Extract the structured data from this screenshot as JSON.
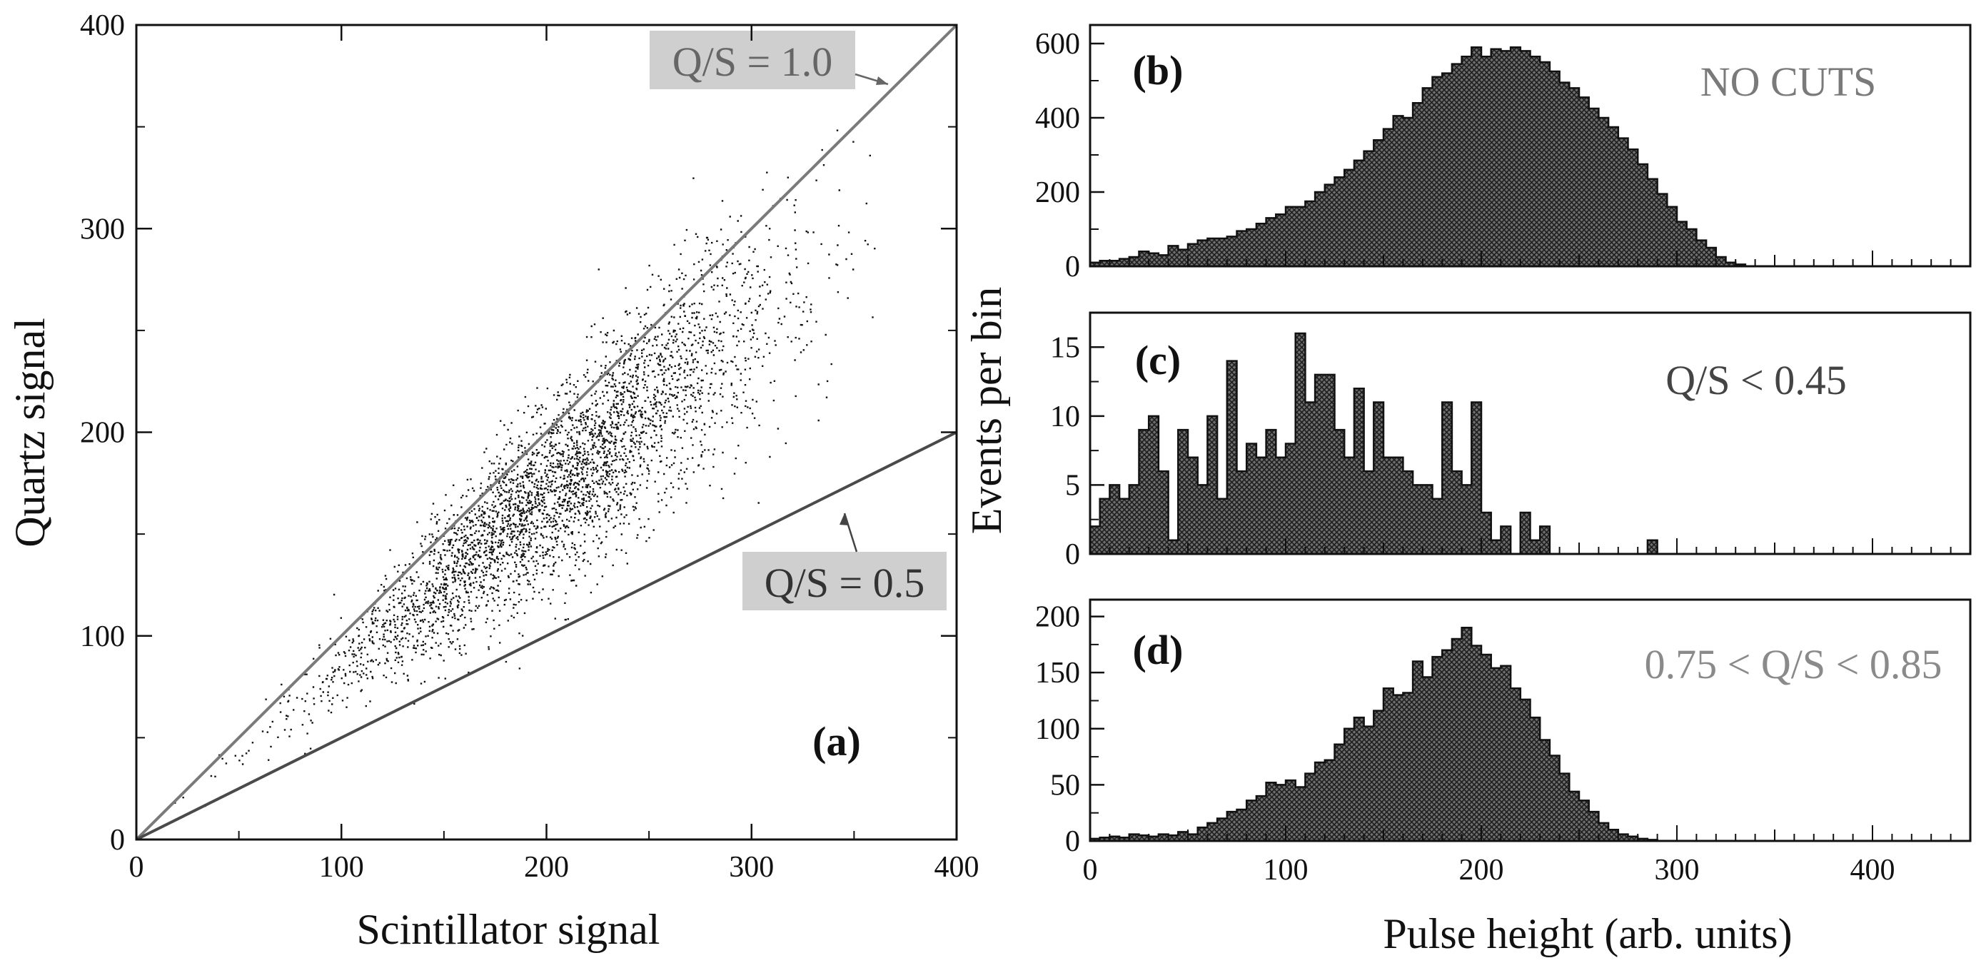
{
  "chart_data": [
    {
      "id": "a",
      "type": "scatter",
      "panel_label": "(a)",
      "xlabel": "Scintillator signal",
      "ylabel": "Quartz signal",
      "xlim": [
        0,
        400
      ],
      "ylim": [
        0,
        400
      ],
      "xticks": [
        0,
        100,
        200,
        300,
        400
      ],
      "yticks": [
        0,
        100,
        200,
        300,
        400
      ],
      "x_tick_labels": [
        "0",
        "100",
        "200",
        "300",
        "400"
      ],
      "y_tick_labels": [
        "0",
        "100",
        "200",
        "300",
        "400"
      ],
      "points": {
        "n": 9000,
        "ratio_mean": 0.85,
        "ratio_sd": 0.11,
        "scint_mean": 205,
        "scint_sd": 55
      },
      "lines": [
        {
          "label": "Q/S = 1.0",
          "slope": 1.0,
          "color": "#7a7a7a",
          "annotation_at": [
            370,
            373
          ]
        },
        {
          "label": "Q/S = 0.5",
          "slope": 0.5,
          "color": "#4a4a4a",
          "annotation_at": [
            346,
            163
          ]
        }
      ],
      "label_background": "#cfcfcf"
    },
    {
      "id": "b",
      "type": "bar",
      "panel_label": "(b)",
      "annotation": "NO CUTS",
      "annotation_color": "#7a7a7a",
      "xlim": [
        0,
        450
      ],
      "ylim": [
        0,
        650
      ],
      "xticks": [
        0,
        100,
        200,
        300,
        400
      ],
      "yticks": [
        0,
        200,
        400,
        600
      ],
      "y_tick_labels": [
        "0",
        "200",
        "400",
        "600"
      ],
      "bin_width": 5,
      "values": [
        10,
        15,
        15,
        20,
        25,
        40,
        35,
        30,
        55,
        45,
        60,
        70,
        75,
        75,
        80,
        95,
        100,
        115,
        130,
        140,
        160,
        160,
        175,
        200,
        220,
        240,
        260,
        285,
        310,
        340,
        370,
        405,
        400,
        440,
        480,
        510,
        520,
        545,
        565,
        590,
        565,
        585,
        580,
        590,
        580,
        565,
        550,
        525,
        495,
        480,
        455,
        425,
        400,
        375,
        345,
        315,
        275,
        235,
        195,
        160,
        120,
        100,
        70,
        50,
        25,
        10,
        5,
        0,
        0,
        0,
        0,
        0,
        0,
        0,
        0,
        0,
        0,
        0,
        0,
        0,
        0,
        0,
        0,
        0,
        0,
        0,
        0,
        0,
        0,
        0
      ]
    },
    {
      "id": "c",
      "type": "bar",
      "panel_label": "(c)",
      "annotation": "Q/S < 0.45",
      "annotation_color": "#444444",
      "xlim": [
        0,
        450
      ],
      "ylim": [
        0,
        17.5
      ],
      "xticks": [
        0,
        100,
        200,
        300,
        400
      ],
      "yticks": [
        0,
        5,
        10,
        15
      ],
      "y_tick_labels": [
        "0",
        "5",
        "10",
        "15"
      ],
      "bin_width": 5,
      "values": [
        2,
        4,
        5,
        4,
        5,
        9,
        10,
        6,
        1,
        9,
        7,
        5,
        10,
        4,
        14,
        6,
        8,
        7,
        9,
        7,
        8,
        16,
        11,
        13,
        13,
        9,
        7,
        12,
        6,
        11,
        7,
        7,
        6,
        5,
        5,
        4,
        11,
        6,
        5,
        11,
        3,
        1,
        2,
        0,
        3,
        1,
        2,
        0,
        0,
        0,
        0,
        0,
        0,
        0,
        0,
        0,
        0,
        1,
        0,
        0,
        0,
        0,
        0,
        0,
        0,
        0,
        0,
        0,
        0,
        0,
        0,
        0,
        0,
        0,
        0,
        0,
        0,
        0,
        0,
        0,
        0,
        0,
        0,
        0,
        0,
        0,
        0,
        0,
        0,
        0
      ]
    },
    {
      "id": "d",
      "type": "bar",
      "panel_label": "(d)",
      "annotation": "0.75 < Q/S < 0.85",
      "annotation_color": "#8a8a8a",
      "xlim": [
        0,
        450
      ],
      "ylim": [
        0,
        215
      ],
      "xticks": [
        0,
        100,
        200,
        300,
        400
      ],
      "yticks": [
        0,
        50,
        100,
        150,
        200
      ],
      "y_tick_labels": [
        "0",
        "50",
        "100",
        "150",
        "200"
      ],
      "x_tick_labels": [
        "0",
        "100",
        "200",
        "300",
        "400"
      ],
      "bin_width": 5,
      "values": [
        2,
        3,
        4,
        3,
        6,
        5,
        4,
        6,
        5,
        8,
        6,
        12,
        16,
        20,
        26,
        28,
        36,
        40,
        52,
        50,
        54,
        48,
        60,
        70,
        72,
        86,
        100,
        110,
        102,
        116,
        136,
        130,
        132,
        160,
        146,
        164,
        170,
        180,
        190,
        174,
        166,
        154,
        156,
        136,
        126,
        110,
        90,
        76,
        60,
        44,
        36,
        26,
        16,
        10,
        6,
        4,
        2,
        1,
        0,
        0,
        0,
        0,
        0,
        0,
        0,
        0,
        0,
        0,
        0,
        0,
        0,
        0,
        0,
        0,
        0,
        0,
        0,
        0,
        0,
        0,
        0,
        0,
        0,
        0,
        0,
        0,
        0,
        0,
        0,
        0
      ]
    },
    {
      "id": "shared",
      "type": "bar",
      "xlabel": "Pulse height (arb. units)",
      "ylabel": "Events per bin"
    }
  ]
}
